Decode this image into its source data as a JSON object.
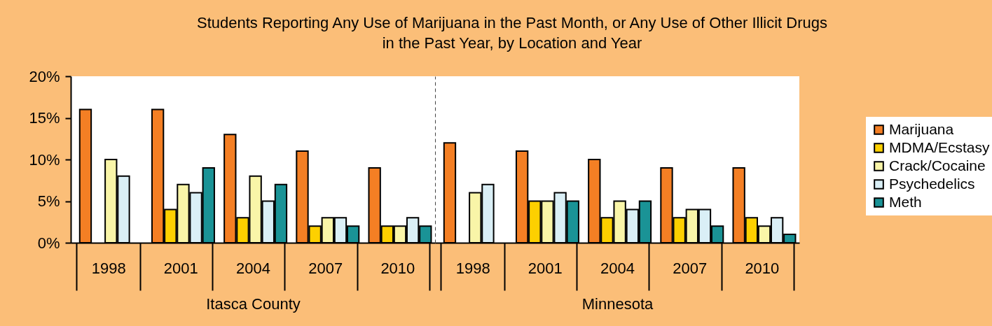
{
  "chart_data": [
    {
      "type": "bar",
      "title": "Students Reporting Any Use of Marijuana in the Past Month, or Any Use of Other Illicit Drugs in the Past Year, by Location and Year",
      "xlabel": "Itasca County",
      "categories": [
        "1998",
        "2001",
        "2004",
        "2007",
        "2010"
      ],
      "ylim": [
        0,
        20
      ],
      "yticks": [
        {
          "value": 0,
          "label": "0%"
        },
        {
          "value": 5,
          "label": "5%"
        },
        {
          "value": 10,
          "label": "10%"
        },
        {
          "value": 15,
          "label": "15%"
        },
        {
          "value": 20,
          "label": "20%"
        }
      ],
      "grid": false,
      "legend": "right",
      "series": [
        {
          "name": "Marijuana",
          "color": "#f47f24",
          "values": [
            16,
            16,
            13,
            11,
            9
          ]
        },
        {
          "name": "MDMA/Ecstasy",
          "color": "#fdd000",
          "values": [
            null,
            4,
            3,
            2,
            2
          ]
        },
        {
          "name": "Crack/Cocaine",
          "color": "#f9f5a8",
          "values": [
            10,
            7,
            8,
            3,
            2
          ]
        },
        {
          "name": "Psychedelics",
          "color": "#daeff6",
          "values": [
            8,
            6,
            5,
            3,
            3
          ]
        },
        {
          "name": "Meth",
          "color": "#1a9396",
          "values": [
            null,
            9,
            7,
            2,
            2
          ]
        }
      ]
    },
    {
      "type": "bar",
      "xlabel": "Minnesota",
      "categories": [
        "1998",
        "2001",
        "2004",
        "2007",
        "2010"
      ],
      "ylim": [
        0,
        20
      ],
      "yticks": [
        {
          "value": 0,
          "label": null
        },
        {
          "value": 5,
          "label": null
        },
        {
          "value": 10,
          "label": null
        },
        {
          "value": 15,
          "label": null
        },
        {
          "value": 20,
          "label": null
        }
      ],
      "tick_labels": "x",
      "grid": false,
      "legend": "right",
      "series": [
        {
          "name": "Marijuana",
          "color": "#f47f24",
          "values": [
            12,
            11,
            10,
            9,
            9
          ]
        },
        {
          "name": "MDMA/Ecstasy",
          "color": "#fdd000",
          "values": [
            null,
            5,
            3,
            3,
            3
          ]
        },
        {
          "name": "Crack/Cocaine",
          "color": "#f9f5a8",
          "values": [
            6,
            5,
            5,
            4,
            2
          ]
        },
        {
          "name": "Psychedelics",
          "color": "#daeff6",
          "values": [
            7,
            6,
            4,
            4,
            3
          ]
        },
        {
          "name": "Meth",
          "color": "#1a9396",
          "values": [
            null,
            5,
            5,
            2,
            1
          ]
        }
      ]
    }
  ]
}
